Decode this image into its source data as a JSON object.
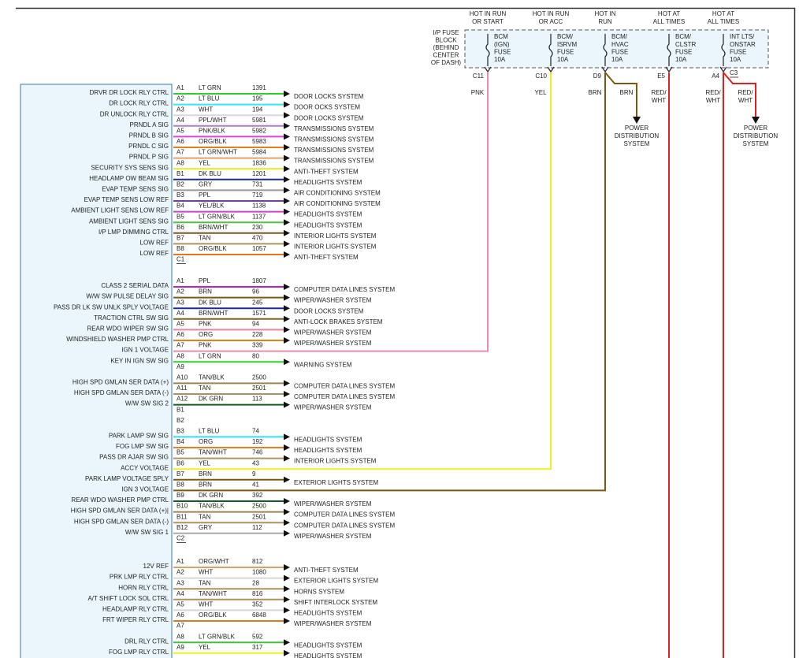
{
  "fuse_block": {
    "label": [
      "I/P FUSE",
      "BLOCK",
      "(BEHIND",
      "CENTER",
      "OF DASH)"
    ],
    "fuses": [
      {
        "header": [
          "HOT IN RUN",
          "OR START"
        ],
        "name": [
          "BCM",
          "(IGN)",
          "FUSE",
          "10A"
        ],
        "connector": "C11",
        "wire": [
          "PNK"
        ],
        "color": "#f08aa8"
      },
      {
        "header": [
          "HOT IN RUN",
          "OR ACC"
        ],
        "name": [
          "BCM/",
          "ISRVM",
          "FUSE",
          "10A"
        ],
        "connector": "C10",
        "wire": [
          "YEL"
        ],
        "color": "#f2ee20"
      },
      {
        "header": [
          "HOT IN",
          "RUN"
        ],
        "name": [
          "BCM/",
          "HVAC",
          "FUSE",
          "10A"
        ],
        "connector": "D9",
        "wire": [
          "BRN"
        ],
        "color": "#7a5a10",
        "branch": {
          "wire": [
            "BRN"
          ],
          "destination": [
            "POWER",
            "DISTRIBUTION",
            "SYSTEM"
          ]
        }
      },
      {
        "header": [
          "HOT AT",
          "ALL TIMES"
        ],
        "name": [
          "BCM/",
          "CLSTR",
          "FUSE",
          "10A"
        ],
        "connector": "E5",
        "wire": [
          "RED/",
          "WHT"
        ],
        "color": "#e02020"
      },
      {
        "header": [
          "HOT AT",
          "ALL TIMES"
        ],
        "name": [
          "INT LTS/",
          "ONSTAR",
          "FUSE",
          "10A"
        ],
        "connector": "A4",
        "wire": [
          "RED/",
          "WHT"
        ],
        "color": "#e02020",
        "branch": {
          "connector": "C3",
          "wire": [
            "RED/",
            "WHT"
          ],
          "destination": [
            "POWER",
            "DISTRIBUTION",
            "SYSTEM"
          ]
        }
      }
    ]
  },
  "connector": {
    "groups": [
      {
        "rows": [
          {
            "pin": "A1",
            "signal": "DRVR DR LOCK RLY CTRL",
            "wire": "LT GRN",
            "circuit": "1391",
            "destination": "DOOR LOCKS SYSTEM",
            "color": "#33cc33"
          },
          {
            "pin": "A2",
            "signal": "DR LOCK RLY CTRL",
            "wire": "LT BLU",
            "circuit": "195",
            "destination": "DOOR OCKS SYSTEM",
            "color": "#33e6f0"
          },
          {
            "pin": "A3",
            "signal": "DR UNLOCK RLY CTRL",
            "wire": "WHT",
            "circuit": "194",
            "destination": "DOOR LOCKS SYSTEM",
            "color": "#d8d8d8"
          },
          {
            "pin": "A4",
            "signal": "PRNDL A SIG",
            "wire": "PPL/WHT",
            "circuit": "5981",
            "destination": "TRANSMISSIONS SYSTEM",
            "color": "#b07cd0"
          },
          {
            "pin": "A5",
            "signal": "PRNDL B SIG",
            "wire": "PNK/BLK",
            "circuit": "5982",
            "destination": "TRANSMISSIONS SYSTEM",
            "color": "#e040e0"
          },
          {
            "pin": "A6",
            "signal": "PRNDL C SIG",
            "wire": "ORG/BLK",
            "circuit": "5983",
            "destination": "TRANSMISSIONS SYSTEM",
            "color": "#e08020"
          },
          {
            "pin": "A7",
            "signal": "PRNDL P SIG",
            "wire": "LT GRN/WHT",
            "circuit": "5984",
            "destination": "TRANSMISSIONS SYSTEM",
            "color": "#e0a070"
          },
          {
            "pin": "A8",
            "signal": "SECURITY SYS SENS SIG",
            "wire": "YEL",
            "circuit": "1836",
            "destination": "ANTI-THEFT SYSTEM",
            "color": "#e8e820"
          },
          {
            "pin": "B1",
            "signal": "HEADLAMP OW BEAM SIG",
            "wire": "DK BLU",
            "circuit": "1201",
            "destination": "HEADLIGHTS SYSTEM",
            "color": "#1a2a9a"
          },
          {
            "pin": "B2",
            "signal": "EVAP TEMP SENS SIG",
            "wire": "GRY",
            "circuit": "731",
            "destination": "AIR CONDITIONING SYSTEM",
            "color": "#999999"
          },
          {
            "pin": "B3",
            "signal": "EVAP TEMP SENS LOW REF",
            "wire": "PPL",
            "circuit": "719",
            "destination": "AIR CONDITIONING SYSTEM",
            "color": "#7040a0"
          },
          {
            "pin": "B4",
            "signal": "AMBIENT LIGHT SENS LOW REF",
            "wire": "YEL/BLK",
            "circuit": "1138",
            "destination": "HEADLIGHTS SYSTEM",
            "color": "#d040d0"
          },
          {
            "pin": "B5",
            "signal": "AMBIENT LIGHT SENS SIG",
            "wire": "LT GRN/BLK",
            "circuit": "1137",
            "destination": "HEADLIGHTS SYSTEM",
            "color": "#50c040"
          },
          {
            "pin": "B6",
            "signal": "I/P LMP DIMMING CTRL",
            "wire": "BRN/WHT",
            "circuit": "230",
            "destination": "INTERIOR LIGHTS SYSTEM",
            "color": "#7a5a20"
          },
          {
            "pin": "B7",
            "signal": "LOW REF",
            "wire": "TAN",
            "circuit": "470",
            "destination": "INTERIOR LIGHTS SYSTEM",
            "color": "#b09060"
          },
          {
            "pin": "B8",
            "signal": "LOW REF",
            "wire": "ORG/BLK",
            "circuit": "1057",
            "destination": "ANTI-THEFT SYSTEM",
            "color": "#e07820"
          }
        ],
        "terminator": "C1"
      },
      {
        "rows": [
          {
            "pin": "A1",
            "signal": "CLASS 2 SERIAL DATA",
            "wire": "PPL",
            "circuit": "1807",
            "destination": "COMPUTER DATA LINES SYSTEM",
            "color": "#c020c0"
          },
          {
            "pin": "A2",
            "signal": "W/W SW PULSE DELAY SIG",
            "wire": "BRN",
            "circuit": "96",
            "destination": "WIPER/WASHER SYSTEM",
            "color": "#7a5a10"
          },
          {
            "pin": "A3",
            "signal": "PASS DR LK SW UNLK SPLY VOLTAGE",
            "wire": "DK BLU",
            "circuit": "245",
            "destination": "DOOR LOCKS SYSTEM",
            "color": "#1a2a9a"
          },
          {
            "pin": "A4",
            "signal": "TRACTION CTRL SW SIG",
            "wire": "BRN/WHT",
            "circuit": "1571",
            "destination": "ANTI-LOCK BRAKES SYSTEM",
            "color": "#806020"
          },
          {
            "pin": "A5",
            "signal": "REAR WDO WIPER SW SIG",
            "wire": "PNK",
            "circuit": "94",
            "destination": "WIPER/WASHER SYSTEM",
            "color": "#f080a0"
          },
          {
            "pin": "A6",
            "signal": "WINDSHIELD WASHER PMP CTRL",
            "wire": "ORG",
            "circuit": "228",
            "destination": "WIPER/WASHER SYSTEM",
            "color": "#e08020"
          },
          {
            "pin": "A7",
            "signal": "IGN 1 VOLTAGE",
            "wire": "PNK",
            "circuit": "339",
            "color": "#f08aa8"
          },
          {
            "pin": "A8",
            "signal": "KEY IN IGN SW SIG",
            "wire": "LT GRN",
            "circuit": "80",
            "destination": "WARNING SYSTEM",
            "color": "#30d030"
          },
          {
            "pin": "A9"
          },
          {
            "pin": "A10",
            "signal": "HIGH SPD GMLAN SER DATA (+)",
            "wire": "TAN/BLK",
            "circuit": "2500",
            "destination": "COMPUTER DATA LINES SYSTEM",
            "color": "#a08050"
          },
          {
            "pin": "A11",
            "signal": "HIGH SPD GMLAN SER DATA (-)",
            "wire": "TAN",
            "circuit": "2501",
            "destination": "COMPUTER DATA LINES SYSTEM",
            "color": "#b09060"
          },
          {
            "pin": "A12",
            "signal": "W/W SW SIG 2",
            "wire": "DK GRN",
            "circuit": "113",
            "destination": "WIPER/WASHER SYSTEM",
            "color": "#106020"
          },
          {
            "pin": "B1"
          },
          {
            "pin": "B2"
          },
          {
            "pin": "B3",
            "signal": "PARK LAMP SW SIG",
            "wire": "LT BLU",
            "circuit": "74",
            "destination": "HEADLIGHTS SYSTEM",
            "color": "#30e0f0"
          },
          {
            "pin": "B4",
            "signal": "FOG LMP SW SIG",
            "wire": "ORG",
            "circuit": "192",
            "destination": "HEADLIGHTS SYSTEM",
            "color": "#e08020"
          },
          {
            "pin": "B5",
            "signal": "PASS DR AJAR SW SIG",
            "wire": "TAN/WHT",
            "circuit": "746",
            "destination": "INTERIOR LIGHTS SYSTEM",
            "color": "#b09060"
          },
          {
            "pin": "B6",
            "signal": "ACCY VOLTAGE",
            "wire": "YEL",
            "circuit": "43",
            "color": "#f2ee20"
          },
          {
            "pin": "B7",
            "signal": "PARK LAMP VOLTAGE SPLY",
            "wire": "BRN",
            "circuit": "9",
            "destination": "EXTERIOR LIGHTS SYSTEM",
            "color": "#7a5a10"
          },
          {
            "pin": "B8",
            "signal": "IGN 3 VOLTAGE",
            "wire": "BRN",
            "circuit": "41",
            "color": "#7a5a10"
          },
          {
            "pin": "B9",
            "signal": "REAR WDO WASHER PMP CTRL",
            "wire": "DK GRN",
            "circuit": "392",
            "destination": "WIPER/WASHER SYSTEM",
            "color": "#106020"
          },
          {
            "pin": "B10",
            "signal": "HIGH SPD GMLAN SER DATA (+)|",
            "wire": "TAN/BLK",
            "circuit": "2500",
            "destination": "COMPUTER DATA LINES SYSTEM",
            "color": "#a08050"
          },
          {
            "pin": "B11",
            "signal": "HIGH SPD GMLAN SER DATA (-)",
            "wire": "TAN",
            "circuit": "2501",
            "destination": "COMPUTER DATA LINES SYSTEM",
            "color": "#b09060"
          },
          {
            "pin": "B12",
            "signal": "W/W SW SIG 1",
            "wire": "GRY",
            "circuit": "112",
            "destination": "WIPER/WASHER SYSTEM",
            "color": "#aaaaaa"
          }
        ],
        "terminator": "C2"
      },
      {
        "rows": [
          {
            "pin": "A1",
            "signal": "12V REF",
            "wire": "ORG/WHT",
            "circuit": "812",
            "destination": "ANTI-THEFT SYSTEM",
            "color": "#e0a060"
          },
          {
            "pin": "A2",
            "signal": "PRK LMP RLY CTRL",
            "wire": "WHT",
            "circuit": "1080",
            "destination": "EXTERIOR LIGHTS SYSTEM",
            "color": "#d8d8d8"
          },
          {
            "pin": "A3",
            "signal": "HORN RLY CTRL",
            "wire": "TAN",
            "circuit": "28",
            "destination": "HORNS SYSTEM",
            "color": "#b09060"
          },
          {
            "pin": "A4",
            "signal": "A/T SHIFT LOCK SOL CTRL",
            "wire": "TAN/WHT",
            "circuit": "816",
            "destination": "SHIFT INTERLOCK SYSTEM",
            "color": "#b09060"
          },
          {
            "pin": "A5",
            "signal": "HEADLAMP RLY CTRL",
            "wire": "WHT",
            "circuit": "352",
            "destination": "HEADLIGHTS SYSTEM",
            "color": "#d8d8d8"
          },
          {
            "pin": "A6",
            "signal": "FRT WIPER RLY CTRL",
            "wire": "ORG/BLK",
            "circuit": "6848",
            "destination": "WIPER/WASHER SYSTEM",
            "color": "#e07820"
          },
          {
            "pin": "A7"
          },
          {
            "pin": "A8",
            "signal": "DRL RLY CTRL",
            "wire": "LT GRN/BLK",
            "circuit": "592",
            "destination": "HEADLIGHTS SYSTEM",
            "color": "#40c040"
          },
          {
            "pin": "A9",
            "signal": "FOG LMP RLY CTRL",
            "wire": "YEL",
            "circuit": "317",
            "destination": "HEADLIGHTS SYSTEM",
            "color": "#f0f020"
          }
        ]
      }
    ]
  }
}
